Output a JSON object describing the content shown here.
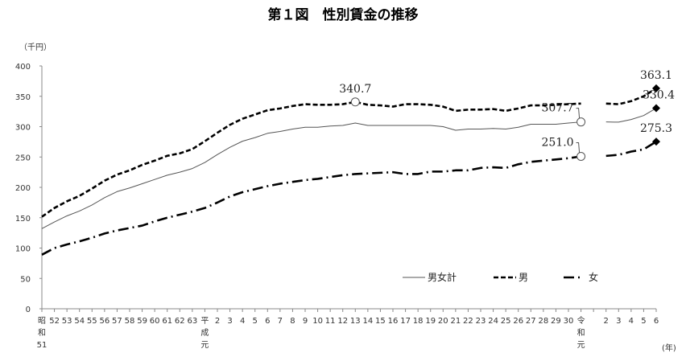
{
  "chart_data": {
    "type": "line",
    "title": "第１図　性別賃金の推移",
    "ylabel": "（千円）",
    "xlabel": "(年)",
    "ylim": [
      0,
      400
    ],
    "yticks": [
      0,
      50,
      100,
      150,
      200,
      250,
      300,
      350,
      400
    ],
    "grid": false,
    "legend_placement": "bottom-right",
    "categories": [
      "昭\n和\n51",
      "52",
      "53",
      "54",
      "55",
      "56",
      "57",
      "58",
      "59",
      "60",
      "61",
      "62",
      "63",
      "平\n成\n元",
      "2",
      "3",
      "4",
      "5",
      "6",
      "7",
      "8",
      "9",
      "10",
      "11",
      "12",
      "13",
      "14",
      "15",
      "16",
      "17",
      "18",
      "19",
      "20",
      "21",
      "22",
      "23",
      "24",
      "25",
      "26",
      "27",
      "28",
      "29",
      "30",
      "令\n和\n元",
      "",
      "2",
      "3",
      "4",
      "5",
      "6"
    ],
    "series": [
      {
        "name": "男女計",
        "color": "#555555",
        "style": "solid",
        "values": [
          132,
          143,
          153,
          161,
          171,
          183,
          193,
          199,
          206,
          213,
          220,
          225,
          231,
          241,
          254,
          266,
          276,
          282,
          289,
          292,
          296,
          299,
          299,
          301,
          302,
          306,
          302,
          302,
          302,
          302,
          302,
          302,
          300,
          294,
          296,
          296,
          297,
          296,
          299,
          304,
          304,
          304,
          306,
          307.7,
          null,
          307.7,
          307.4,
          311.8,
          318.3,
          330.4
        ]
      },
      {
        "name": "男",
        "color": "#000000",
        "style": "dashed",
        "values": [
          151.5,
          166,
          177,
          186,
          198,
          211,
          221,
          228,
          237,
          244,
          252,
          256,
          263,
          276,
          290,
          303,
          313,
          320,
          327,
          330,
          334,
          337,
          336,
          336,
          337,
          340.7,
          336,
          335,
          333,
          337,
          337,
          336,
          333,
          326,
          328,
          328,
          329,
          326,
          330,
          335,
          335,
          336,
          337,
          338,
          null,
          338,
          337,
          342,
          350,
          363.1
        ]
      },
      {
        "name": "女",
        "color": "#000000",
        "style": "dash-dot",
        "values": [
          89,
          100,
          106,
          111,
          117,
          124,
          129,
          133,
          137,
          144,
          150,
          155,
          160,
          166,
          175,
          185,
          192,
          197,
          202,
          206,
          209,
          212,
          214,
          217,
          220,
          222,
          223,
          224,
          225,
          222,
          222,
          226,
          226,
          228,
          228,
          232,
          233,
          232,
          238,
          242,
          244,
          246,
          248,
          251.0,
          null,
          251.8,
          253.6,
          258.9,
          262.6,
          275.3
        ]
      }
    ],
    "annotations": [
      {
        "text": "340.7",
        "series": "男",
        "category_index": 25,
        "marker": "circle"
      },
      {
        "text": "307.7",
        "series": "男女計",
        "category_index": 43,
        "marker": "circle"
      },
      {
        "text": "251.0",
        "series": "女",
        "category_index": 43,
        "marker": "circle"
      },
      {
        "text": "363.1",
        "series": "男",
        "category_index": 49,
        "marker": "diamond"
      },
      {
        "text": "330.4",
        "series": "男女計",
        "category_index": 49,
        "marker": "diamond"
      },
      {
        "text": "275.3",
        "series": "女",
        "category_index": 49,
        "marker": "diamond"
      }
    ]
  }
}
